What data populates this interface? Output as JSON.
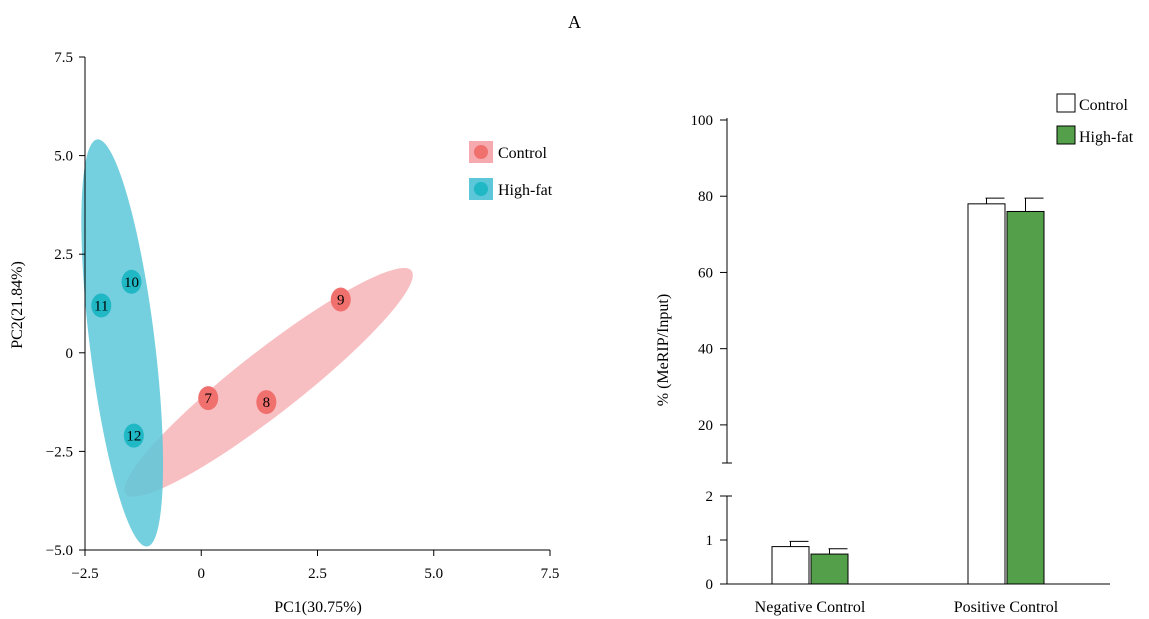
{
  "figure": {
    "panel_label": "A"
  },
  "chart_data": [
    {
      "type": "scatter",
      "title": "",
      "xlabel": "PC1(30.75%)",
      "ylabel": "PC2(21.84%)",
      "xlim": [
        -2.5,
        7.5
      ],
      "ylim": [
        -5.0,
        7.5
      ],
      "xticks": [
        -2.5,
        0,
        2.5,
        5.0,
        7.5
      ],
      "xtick_labels": [
        "−2.5",
        "0",
        "2.5",
        "5.0",
        "7.5"
      ],
      "yticks": [
        -5.0,
        -2.5,
        0,
        2.5,
        5.0,
        7.5
      ],
      "ytick_labels": [
        "−5.0",
        "−2.5",
        "0",
        "2.5",
        "5.0",
        "7.5"
      ],
      "grid": false,
      "legend_position": "top-right",
      "colors": {
        "Control": "#f0706e",
        "High-fat": "#1fb8c4",
        "Control_ellipse": "#f6a9ae",
        "High-fat_ellipse": "#5cc7d9"
      },
      "series": [
        {
          "name": "Control",
          "points": [
            {
              "label": "7",
              "x": 0.15,
              "y": -1.15
            },
            {
              "label": "8",
              "x": 1.4,
              "y": -1.25
            },
            {
              "label": "9",
              "x": 3.0,
              "y": 1.35
            }
          ],
          "ellipse": {
            "cx": 1.45,
            "cy": -0.75,
            "rx": 3.9,
            "ry": 0.8,
            "angle_deg": 38
          }
        },
        {
          "name": "High-fat",
          "points": [
            {
              "label": "10",
              "x": -1.5,
              "y": 1.8
            },
            {
              "label": "11",
              "x": -2.15,
              "y": 1.2
            },
            {
              "label": "12",
              "x": -1.45,
              "y": -2.1
            }
          ],
          "ellipse": {
            "cx": -1.7,
            "cy": 0.25,
            "rx": 0.7,
            "ry": 5.2,
            "angle_deg": 7
          }
        }
      ]
    },
    {
      "type": "bar",
      "title": "",
      "xlabel": "",
      "ylabel": "% (MeRIP/Input)",
      "categories": [
        "Negative Control",
        "Positive Control"
      ],
      "broken_axis": true,
      "lower_ylim": [
        0,
        2
      ],
      "upper_ylim": [
        10,
        100
      ],
      "lower_ticks": [
        "0",
        "1",
        "2"
      ],
      "upper_ticks": [
        "20",
        "40",
        "60",
        "80",
        "100"
      ],
      "legend_position": "top-right",
      "series": [
        {
          "name": "Control",
          "color": "#ffffff",
          "values": [
            0.85,
            78
          ],
          "errors": [
            0.12,
            1.5
          ]
        },
        {
          "name": "High-fat",
          "color": "#54a04a",
          "values": [
            0.68,
            76
          ],
          "errors": [
            0.12,
            3.5
          ]
        }
      ]
    }
  ]
}
